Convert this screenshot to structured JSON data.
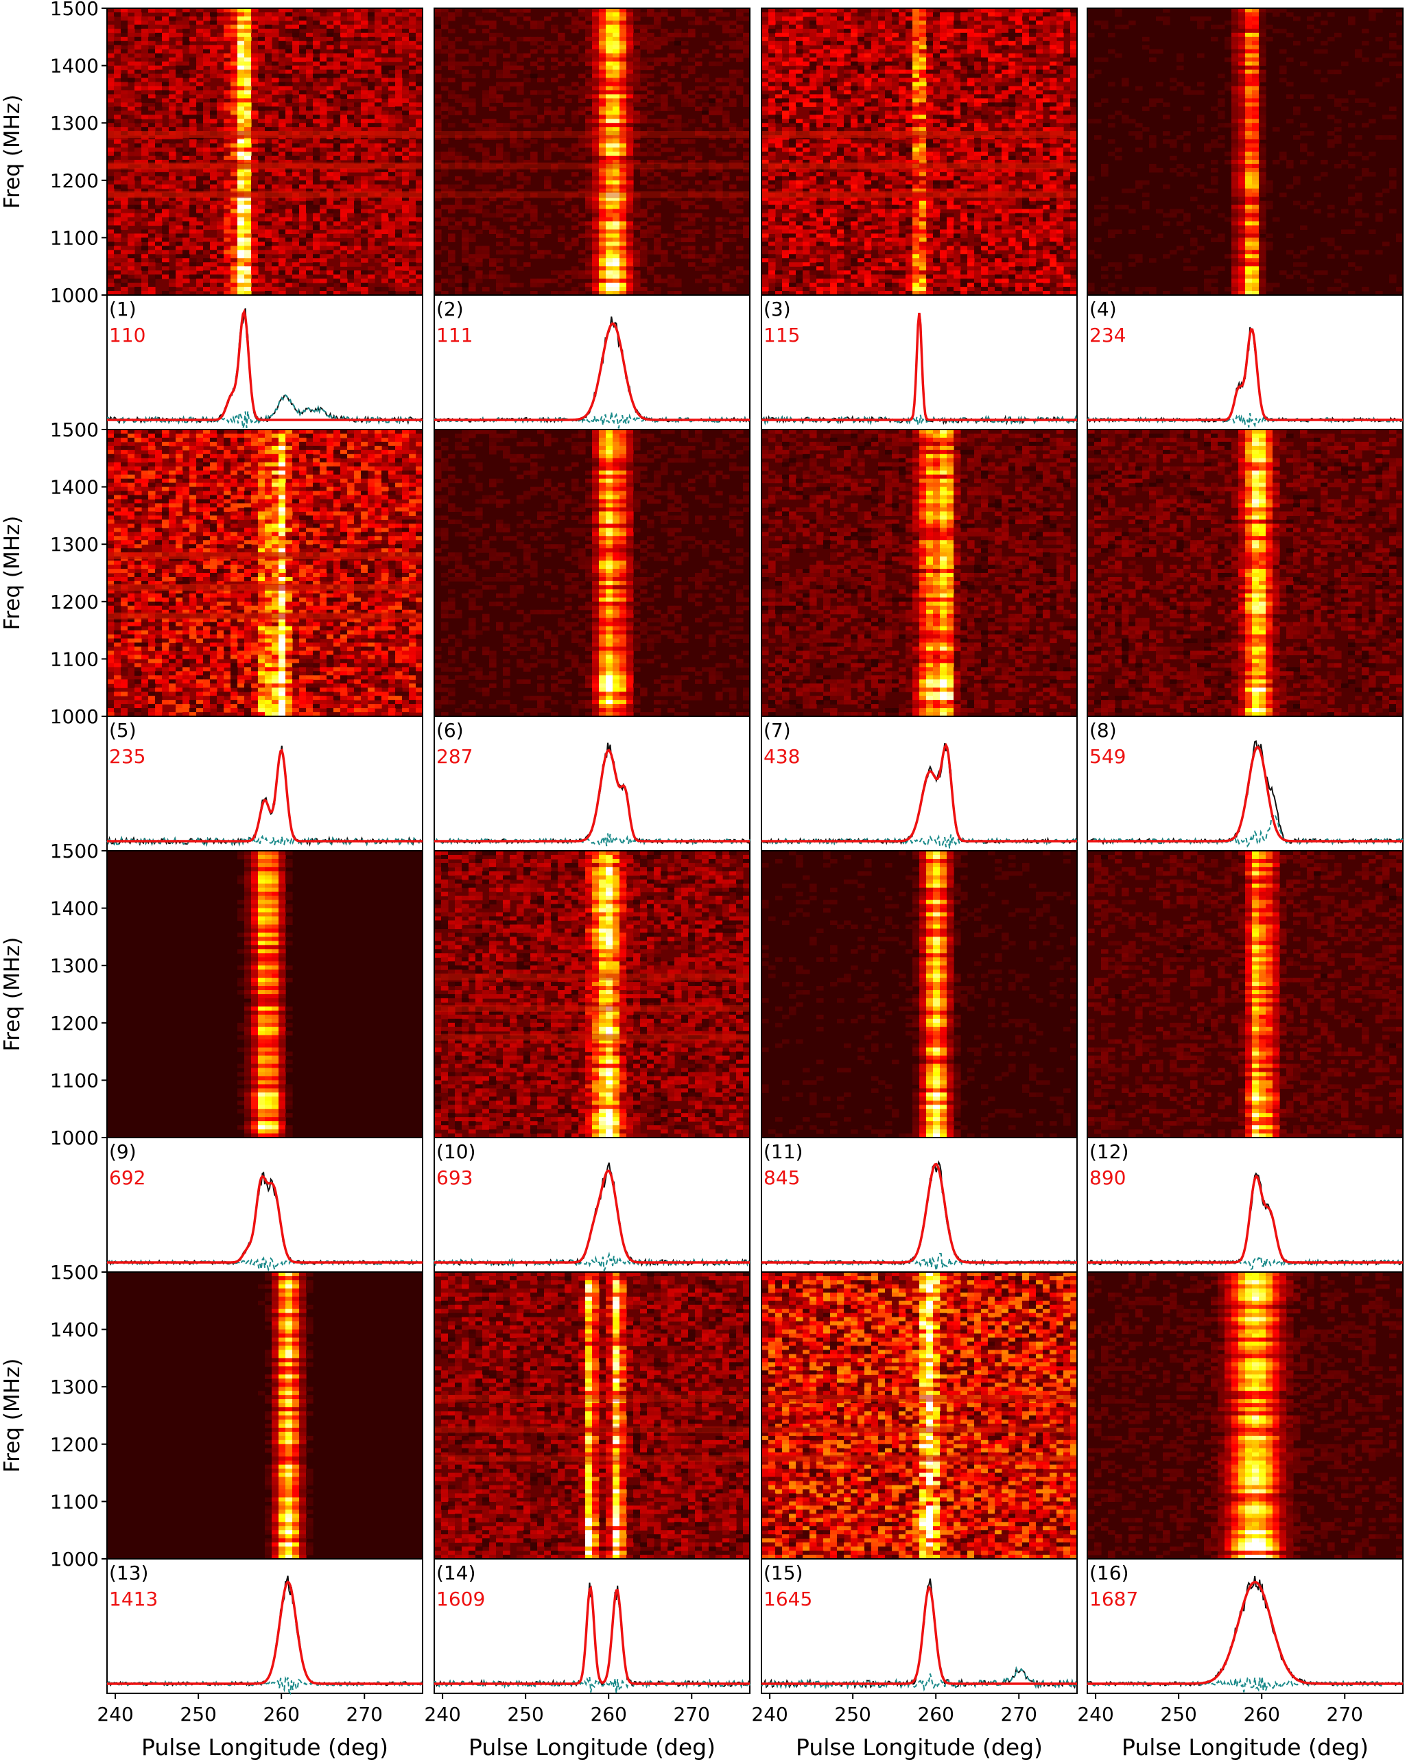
{
  "chart_data": {
    "type": "dynamic-spectrum-grid",
    "x_axis": {
      "label": "Pulse Longitude (deg)",
      "range": [
        239,
        277
      ],
      "ticks": [
        240,
        250,
        260,
        270
      ]
    },
    "y_axis": {
      "label": "Freq (MHz)",
      "range": [
        1000,
        1500
      ],
      "ticks": [
        1000,
        1100,
        1200,
        1300,
        1400,
        1500
      ]
    },
    "colormap": "hot",
    "profile_legend": {
      "observed": "black solid",
      "model": "red solid",
      "residual": "teal dashed"
    },
    "rfi_bands_mhz": [
      1175,
      1225,
      1280
    ],
    "panels": [
      {
        "label": "(1)",
        "pulse": "110",
        "components": [
          {
            "center": 255.5,
            "width": 0.55,
            "amp": 1.0
          },
          {
            "center": 254.0,
            "width": 0.6,
            "amp": 0.22
          }
        ],
        "residual_bump": [
          {
            "center": 260.5,
            "width": 0.8,
            "amp": 0.22
          },
          {
            "center": 264,
            "width": 1.5,
            "amp": 0.1
          }
        ],
        "noise": 0.35,
        "rfi_strength": 0.7
      },
      {
        "label": "(2)",
        "pulse": "111",
        "components": [
          {
            "center": 260.5,
            "width": 1.3,
            "amp": 0.9
          }
        ],
        "residual_bump": [],
        "noise": 0.15,
        "rfi_strength": 0.1
      },
      {
        "label": "(3)",
        "pulse": "115",
        "components": [
          {
            "center": 258.0,
            "width": 0.3,
            "amp": 1.0
          }
        ],
        "residual_bump": [],
        "noise": 0.4,
        "rfi_strength": 0.7
      },
      {
        "label": "(4)",
        "pulse": "234",
        "components": [
          {
            "center": 258.8,
            "width": 0.6,
            "amp": 0.85
          },
          {
            "center": 257.2,
            "width": 0.5,
            "amp": 0.28
          }
        ],
        "residual_bump": [],
        "noise": 0.08,
        "rfi_strength": 0.0
      },
      {
        "label": "(5)",
        "pulse": "235",
        "components": [
          {
            "center": 260.0,
            "width": 0.6,
            "amp": 0.85
          },
          {
            "center": 258.0,
            "width": 0.6,
            "amp": 0.38
          }
        ],
        "residual_bump": [],
        "noise": 0.5,
        "rfi_strength": 0.7
      },
      {
        "label": "(6)",
        "pulse": "287",
        "components": [
          {
            "center": 260.0,
            "width": 1.0,
            "amp": 0.85
          },
          {
            "center": 262.0,
            "width": 0.5,
            "amp": 0.38
          }
        ],
        "residual_bump": [],
        "noise": 0.12,
        "rfi_strength": 0.0
      },
      {
        "label": "(7)",
        "pulse": "438",
        "components": [
          {
            "center": 259.3,
            "width": 1.0,
            "amp": 0.65
          },
          {
            "center": 261.3,
            "width": 0.6,
            "amp": 0.8
          }
        ],
        "residual_bump": [],
        "noise": 0.2,
        "rfi_strength": 0.0
      },
      {
        "label": "(8)",
        "pulse": "549",
        "components": [
          {
            "center": 259.5,
            "width": 1.1,
            "amp": 0.88
          }
        ],
        "residual_bump": [
          {
            "center": 261.5,
            "width": 0.5,
            "amp": 0.25
          }
        ],
        "noise": 0.2,
        "rfi_strength": 0.0
      },
      {
        "label": "(9)",
        "pulse": "692",
        "components": [
          {
            "center": 259.0,
            "width": 0.8,
            "amp": 0.7
          },
          {
            "center": 257.5,
            "width": 0.6,
            "amp": 0.65
          },
          {
            "center": 256.0,
            "width": 0.6,
            "amp": 0.12
          }
        ],
        "residual_bump": [],
        "noise": 0.05,
        "rfi_strength": 0.0
      },
      {
        "label": "(10)",
        "pulse": "693",
        "components": [
          {
            "center": 260.0,
            "width": 1.0,
            "amp": 0.85
          },
          {
            "center": 258.2,
            "width": 0.7,
            "amp": 0.22
          }
        ],
        "residual_bump": [],
        "noise": 0.3,
        "rfi_strength": 0.3
      },
      {
        "label": "(11)",
        "pulse": "845",
        "components": [
          {
            "center": 260.0,
            "width": 1.05,
            "amp": 0.92
          }
        ],
        "residual_bump": [],
        "noise": 0.08,
        "rfi_strength": 0.0
      },
      {
        "label": "(12)",
        "pulse": "890",
        "components": [
          {
            "center": 259.3,
            "width": 0.7,
            "amp": 0.78
          },
          {
            "center": 261.0,
            "width": 0.7,
            "amp": 0.45
          }
        ],
        "residual_bump": [],
        "noise": 0.15,
        "rfi_strength": 0.0
      },
      {
        "label": "(13)",
        "pulse": "1413",
        "components": [
          {
            "center": 260.8,
            "width": 1.0,
            "amp": 0.95
          }
        ],
        "residual_bump": [],
        "noise": 0.06,
        "rfi_strength": 0.0
      },
      {
        "label": "(14)",
        "pulse": "1609",
        "components": [
          {
            "center": 257.8,
            "width": 0.45,
            "amp": 0.9
          },
          {
            "center": 261.0,
            "width": 0.55,
            "amp": 0.88
          }
        ],
        "residual_bump": [],
        "noise": 0.3,
        "rfi_strength": 0.2
      },
      {
        "label": "(15)",
        "pulse": "1645",
        "components": [
          {
            "center": 259.2,
            "width": 0.7,
            "amp": 0.9
          }
        ],
        "residual_bump": [
          {
            "center": 270.0,
            "width": 0.8,
            "amp": 0.12
          }
        ],
        "noise": 0.6,
        "rfi_strength": 0.5
      },
      {
        "label": "(16)",
        "pulse": "1687",
        "components": [
          {
            "center": 259.2,
            "width": 2.0,
            "amp": 0.95
          }
        ],
        "residual_bump": [],
        "noise": 0.12,
        "rfi_strength": 0.0
      }
    ]
  }
}
